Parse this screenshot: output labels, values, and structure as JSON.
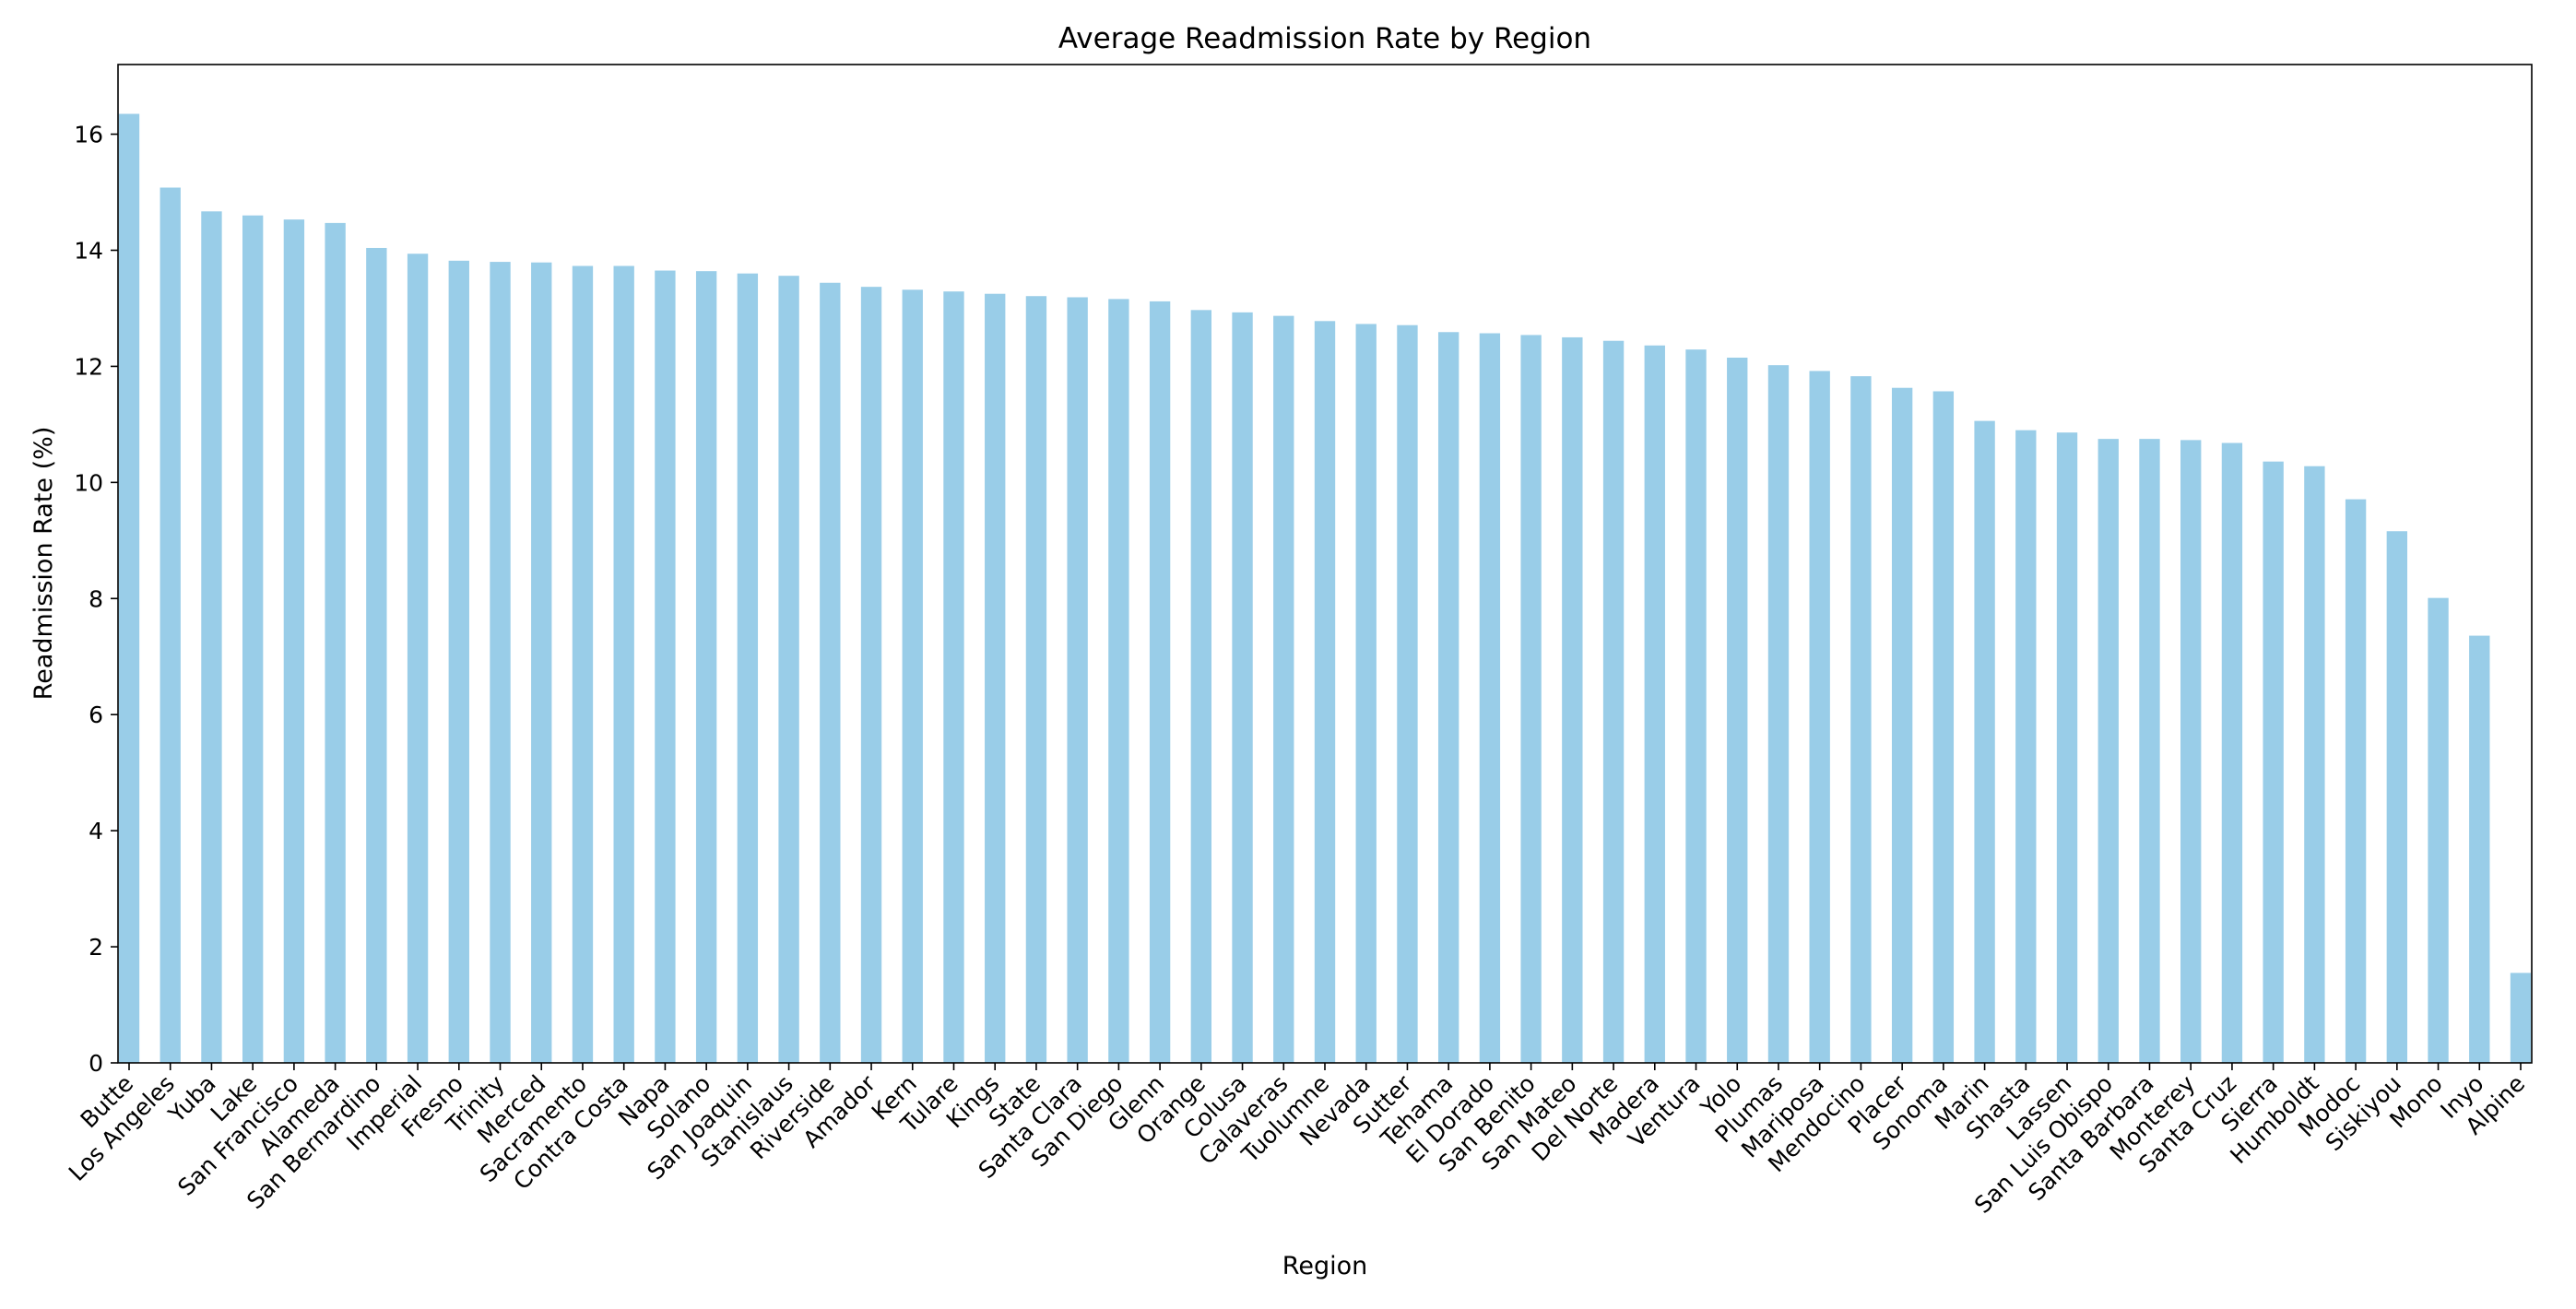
{
  "chart_data": {
    "type": "bar",
    "title": "Average Readmission Rate by Region",
    "xlabel": "Region",
    "ylabel": "Readmission Rate (%)",
    "ylim": [
      0,
      17.2
    ],
    "yticks": [
      0,
      2,
      4,
      6,
      8,
      10,
      12,
      14,
      16
    ],
    "grid": false,
    "bar_color": "#99cde8",
    "categories": [
      "Butte",
      "Los Angeles",
      "Yuba",
      "Lake",
      "San Francisco",
      "Alameda",
      "San Bernardino",
      "Imperial",
      "Fresno",
      "Trinity",
      "Merced",
      "Sacramento",
      "Contra Costa",
      "Napa",
      "Solano",
      "San Joaquin",
      "Stanislaus",
      "Riverside",
      "Amador",
      "Kern",
      "Tulare",
      "Kings",
      "State",
      "Santa Clara",
      "San Diego",
      "Glenn",
      "Orange",
      "Colusa",
      "Calaveras",
      "Tuolumne",
      "Nevada",
      "Sutter",
      "Tehama",
      "El Dorado",
      "San Benito",
      "San Mateo",
      "Del Norte",
      "Madera",
      "Ventura",
      "Yolo",
      "Plumas",
      "Mariposa",
      "Mendocino",
      "Placer",
      "Sonoma",
      "Marin",
      "Shasta",
      "Lassen",
      "San Luis Obispo",
      "Santa Barbara",
      "Monterey",
      "Santa Cruz",
      "Sierra",
      "Humboldt",
      "Modoc",
      "Siskiyou",
      "Mono",
      "Inyo",
      "Alpine"
    ],
    "values": [
      16.35,
      15.08,
      14.67,
      14.6,
      14.53,
      14.47,
      14.04,
      13.94,
      13.82,
      13.8,
      13.79,
      13.73,
      13.73,
      13.65,
      13.64,
      13.6,
      13.56,
      13.44,
      13.37,
      13.32,
      13.29,
      13.25,
      13.21,
      13.19,
      13.16,
      13.12,
      12.97,
      12.93,
      12.87,
      12.78,
      12.73,
      12.71,
      12.59,
      12.57,
      12.54,
      12.5,
      12.44,
      12.36,
      12.29,
      12.15,
      12.02,
      11.92,
      11.83,
      11.63,
      11.57,
      11.06,
      10.9,
      10.86,
      10.75,
      10.75,
      10.73,
      10.68,
      10.36,
      10.28,
      9.71,
      9.16,
      8.01,
      7.36,
      1.55
    ]
  }
}
